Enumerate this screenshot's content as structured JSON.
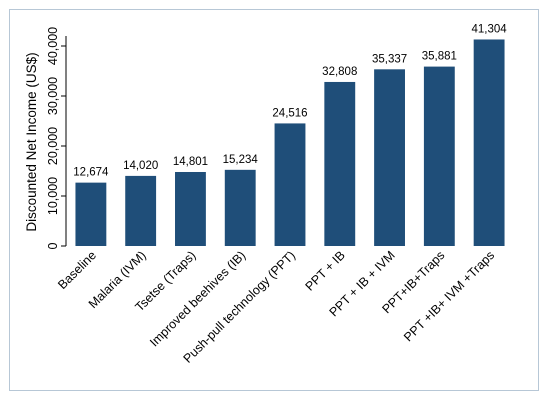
{
  "chart_data": {
    "type": "bar",
    "title": "",
    "xlabel": "",
    "ylabel": "Discounted Net Income (US$)",
    "ylim": [
      0,
      42000
    ],
    "yticks": [
      0,
      10000,
      20000,
      30000,
      40000
    ],
    "ytick_labels": [
      "0",
      "10,000",
      "20,000",
      "30,000",
      "40,000"
    ],
    "grid": false,
    "legend": "none",
    "bar_color": "#1f4e79",
    "categories": [
      "Baseline",
      "Malaria (IVM)",
      "Tsetse (Traps)",
      "Improved beehives (IB)",
      "Push-pull technology (PPT)",
      "PPT + IB",
      "PPT + IB + IVM",
      "PPT+IB+Traps",
      "PPT +IB+ IVM +Traps"
    ],
    "values": [
      12674,
      14020,
      14801,
      15234,
      24516,
      32808,
      35337,
      35881,
      41304
    ],
    "value_labels": [
      "12,674",
      "14,020",
      "14,801",
      "15,234",
      "24,516",
      "32,808",
      "35,337",
      "35,881",
      "41,304"
    ]
  }
}
